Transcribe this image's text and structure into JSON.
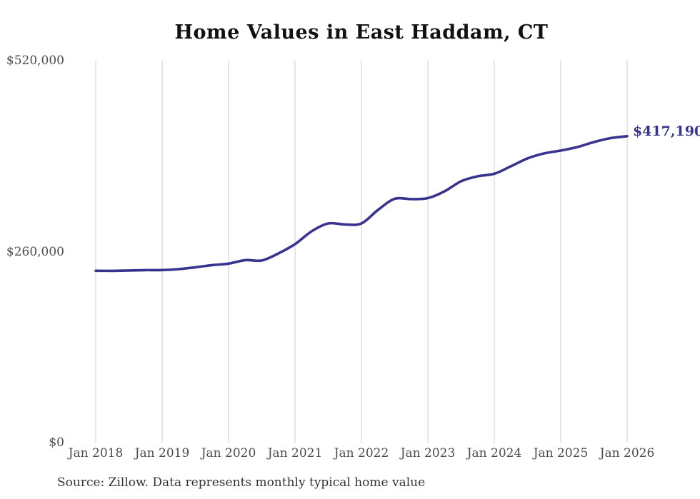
{
  "chart_data": {
    "type": "line",
    "title": "Home Values in East Haddam, CT",
    "source_note": "Source: Zillow. Data represents monthly typical home value",
    "end_label": "$417,190",
    "end_value": 417190,
    "line_color": "#38338f",
    "grid_color": "#cccccc",
    "axis_label_color": "#4d4d4d",
    "ylim": [
      0,
      520000
    ],
    "grid": "vertical-only",
    "legend": "none",
    "x_tick_labels": [
      "Jan 2018",
      "Jan 2019",
      "Jan 2020",
      "Jan 2021",
      "Jan 2022",
      "Jan 2023",
      "Jan 2024",
      "Jan 2025",
      "Jan 2026"
    ],
    "y_ticks": [
      {
        "value": 0,
        "label": "$0"
      },
      {
        "value": 260000,
        "label": "$260,000"
      },
      {
        "value": 520000,
        "label": "$520,000"
      }
    ],
    "series": [
      {
        "name": "Typical home value",
        "x": [
          "Jan 2018",
          "Apr 2018",
          "Jul 2018",
          "Oct 2018",
          "Jan 2019",
          "Apr 2019",
          "Jul 2019",
          "Oct 2019",
          "Jan 2020",
          "Apr 2020",
          "Jul 2020",
          "Oct 2020",
          "Jan 2021",
          "Apr 2021",
          "Jul 2021",
          "Oct 2021",
          "Jan 2022",
          "Apr 2022",
          "Jul 2022",
          "Oct 2022",
          "Jan 2023",
          "Apr 2023",
          "Jul 2023",
          "Oct 2023",
          "Jan 2024",
          "Apr 2024",
          "Jul 2024",
          "Oct 2024",
          "Jan 2025",
          "Apr 2025",
          "Jul 2025",
          "Oct 2025",
          "Jan 2026"
        ],
        "values": [
          234000,
          233900,
          234300,
          234800,
          234900,
          236200,
          238700,
          241600,
          243700,
          248400,
          247900,
          257600,
          270200,
          287700,
          298400,
          297000,
          298400,
          316900,
          331900,
          331500,
          332900,
          342100,
          355800,
          362600,
          366000,
          376200,
          386900,
          393700,
          397600,
          402400,
          409200,
          414500,
          417190
        ]
      }
    ]
  }
}
